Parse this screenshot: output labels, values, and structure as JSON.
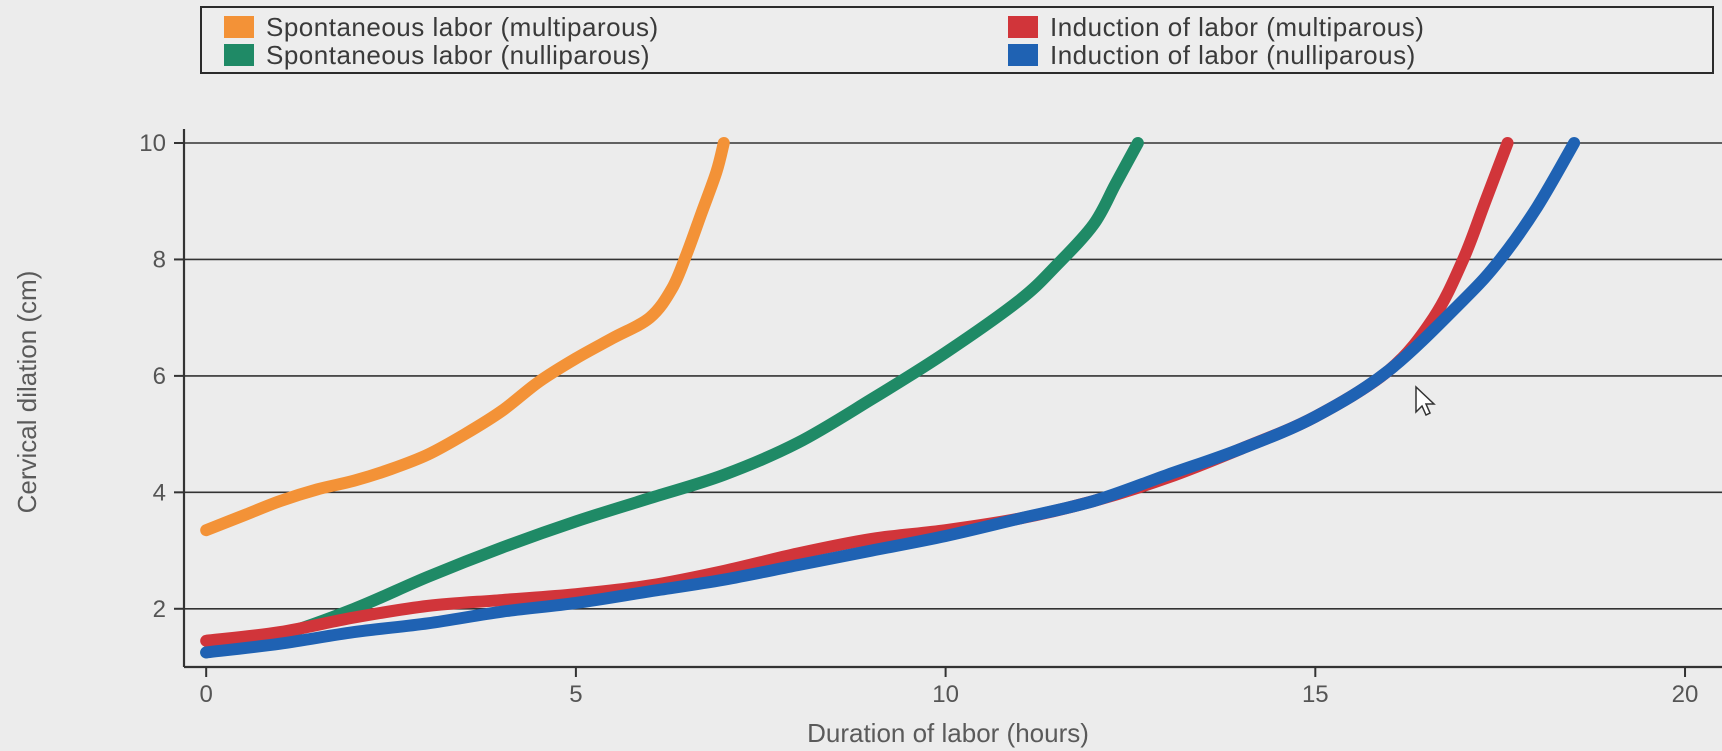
{
  "chart_data": {
    "type": "line",
    "xlabel": "Duration of labor (hours)",
    "ylabel": "Cervical dilation (cm)",
    "xlim": [
      -0.3,
      20.5
    ],
    "ylim": [
      1,
      10
    ],
    "xticks": [
      0,
      5,
      10,
      15,
      20
    ],
    "yticks": [
      2,
      4,
      6,
      8,
      10
    ],
    "grid": "horizontal",
    "legend_position": "top",
    "series": [
      {
        "name": "Spontaneous labor (multiparous)",
        "color": "#f39237",
        "x": [
          0,
          0.5,
          1,
          1.5,
          2,
          2.5,
          3,
          3.5,
          4,
          4.5,
          5,
          5.5,
          6,
          6.3,
          6.5,
          6.7,
          6.9,
          7.0
        ],
        "y": [
          3.35,
          3.6,
          3.85,
          4.05,
          4.2,
          4.4,
          4.65,
          5.0,
          5.4,
          5.9,
          6.3,
          6.65,
          7.0,
          7.5,
          8.1,
          8.8,
          9.5,
          10.0
        ]
      },
      {
        "name": "Spontaneous labor (nulliparous)",
        "color": "#1f8a66",
        "x": [
          0,
          1,
          2,
          3,
          4,
          5,
          6,
          7,
          8,
          9,
          10,
          11,
          11.5,
          12,
          12.3,
          12.6
        ],
        "y": [
          1.25,
          1.55,
          2.0,
          2.55,
          3.05,
          3.5,
          3.9,
          4.3,
          4.85,
          5.6,
          6.4,
          7.3,
          7.9,
          8.6,
          9.3,
          10.0
        ]
      },
      {
        "name": "Induction of labor (multiparous)",
        "color": "#d1353a",
        "x": [
          0,
          1,
          2,
          3,
          4,
          5,
          6,
          7,
          8,
          9,
          10,
          11,
          12,
          13,
          14,
          15,
          16,
          16.6,
          17.0,
          17.3,
          17.6
        ],
        "y": [
          1.45,
          1.6,
          1.85,
          2.05,
          2.15,
          2.25,
          2.4,
          2.65,
          2.95,
          3.2,
          3.35,
          3.55,
          3.85,
          4.25,
          4.75,
          5.3,
          6.1,
          7.0,
          8.0,
          9.0,
          10.0
        ]
      },
      {
        "name": "Induction of labor (nulliparous)",
        "color": "#1f62b3",
        "x": [
          0,
          1,
          2,
          3,
          4,
          5,
          6,
          7,
          8,
          9,
          10,
          11,
          12,
          13,
          14,
          15,
          16,
          17,
          17.5,
          18.0,
          18.5
        ],
        "y": [
          1.25,
          1.4,
          1.6,
          1.75,
          1.95,
          2.1,
          2.3,
          2.5,
          2.75,
          3.0,
          3.25,
          3.55,
          3.85,
          4.3,
          4.75,
          5.3,
          6.1,
          7.3,
          8.0,
          8.9,
          10.0
        ]
      }
    ]
  },
  "legend": {
    "items": [
      {
        "label": "Spontaneous labor (multiparous)",
        "color": "#f39237"
      },
      {
        "label": "Spontaneous labor (nulliparous)",
        "color": "#1f8a66"
      },
      {
        "label": "Induction of labor (multiparous)",
        "color": "#d1353a"
      },
      {
        "label": "Induction of labor (nulliparous)",
        "color": "#1f62b3"
      }
    ]
  }
}
